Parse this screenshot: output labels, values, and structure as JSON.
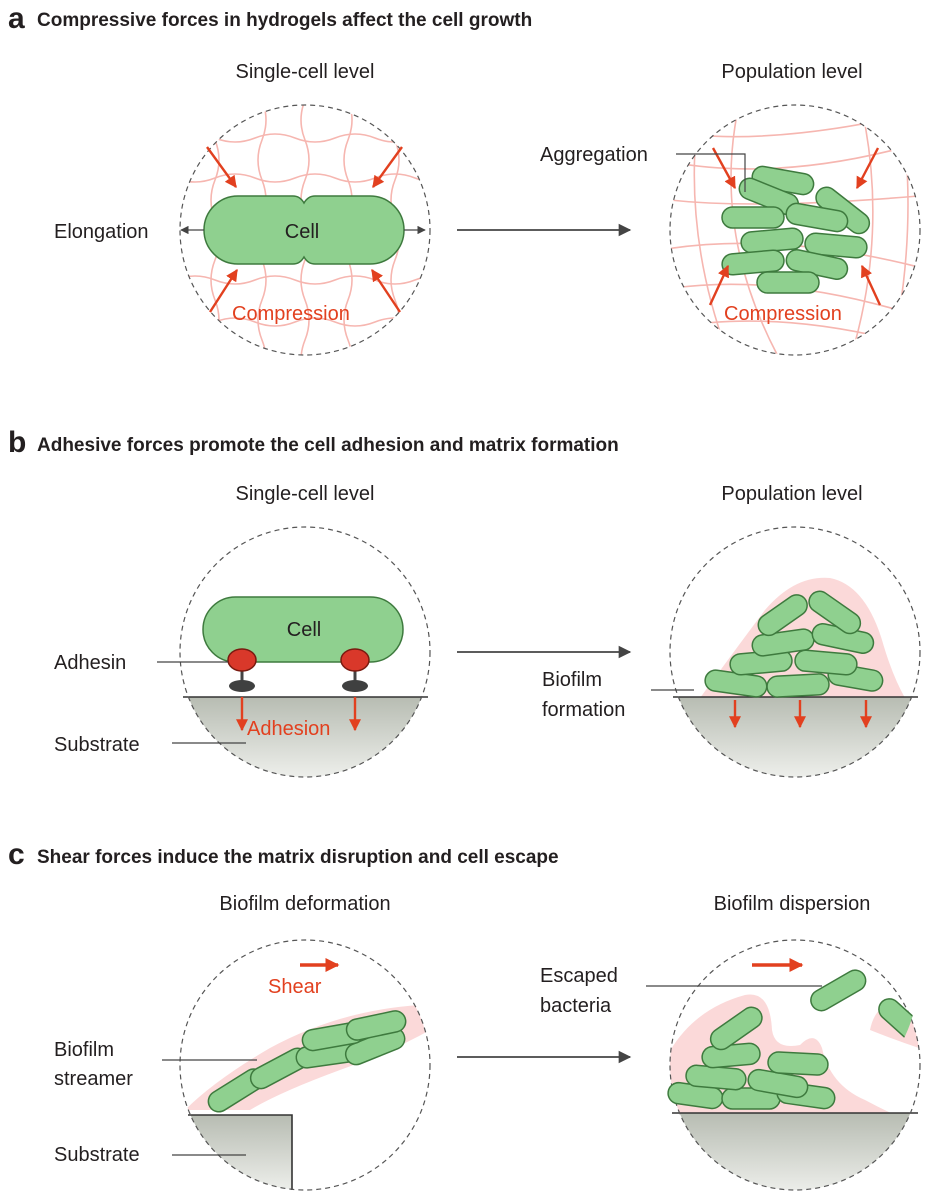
{
  "panel_a": {
    "letter": "a",
    "title": "Compressive forces in hydrogels affect the cell growth",
    "left_heading": "Single-cell level",
    "right_heading": "Population level",
    "cell_label": "Cell",
    "elongation_label": "Elongation",
    "compression_label": "Compression",
    "aggregation_label": "Aggregation"
  },
  "panel_b": {
    "letter": "b",
    "title": "Adhesive forces promote the cell adhesion and matrix formation",
    "left_heading": "Single-cell level",
    "right_heading": "Population level",
    "cell_label": "Cell",
    "adhesin_label": "Adhesin",
    "adhesion_label": "Adhesion",
    "substrate_label": "Substrate",
    "biofilm_formation_line1": "Biofilm",
    "biofilm_formation_line2": "formation"
  },
  "panel_c": {
    "letter": "c",
    "title": "Shear forces induce the matrix disruption and cell escape",
    "left_heading": "Biofilm deformation",
    "right_heading": "Biofilm dispersion",
    "shear_label": "Shear",
    "streamer_line1": "Biofilm",
    "streamer_line2": "streamer",
    "substrate_label": "Substrate",
    "escaped_line1": "Escaped",
    "escaped_line2": "bacteria"
  },
  "colors": {
    "cell_fill": "#8fd08f",
    "cell_stroke": "#3e7a3e",
    "force_arrow": "#e2401f",
    "matrix": "#fbd9d9",
    "hydrogel": "#f6b6b0",
    "adhesin": "#d9382a"
  }
}
